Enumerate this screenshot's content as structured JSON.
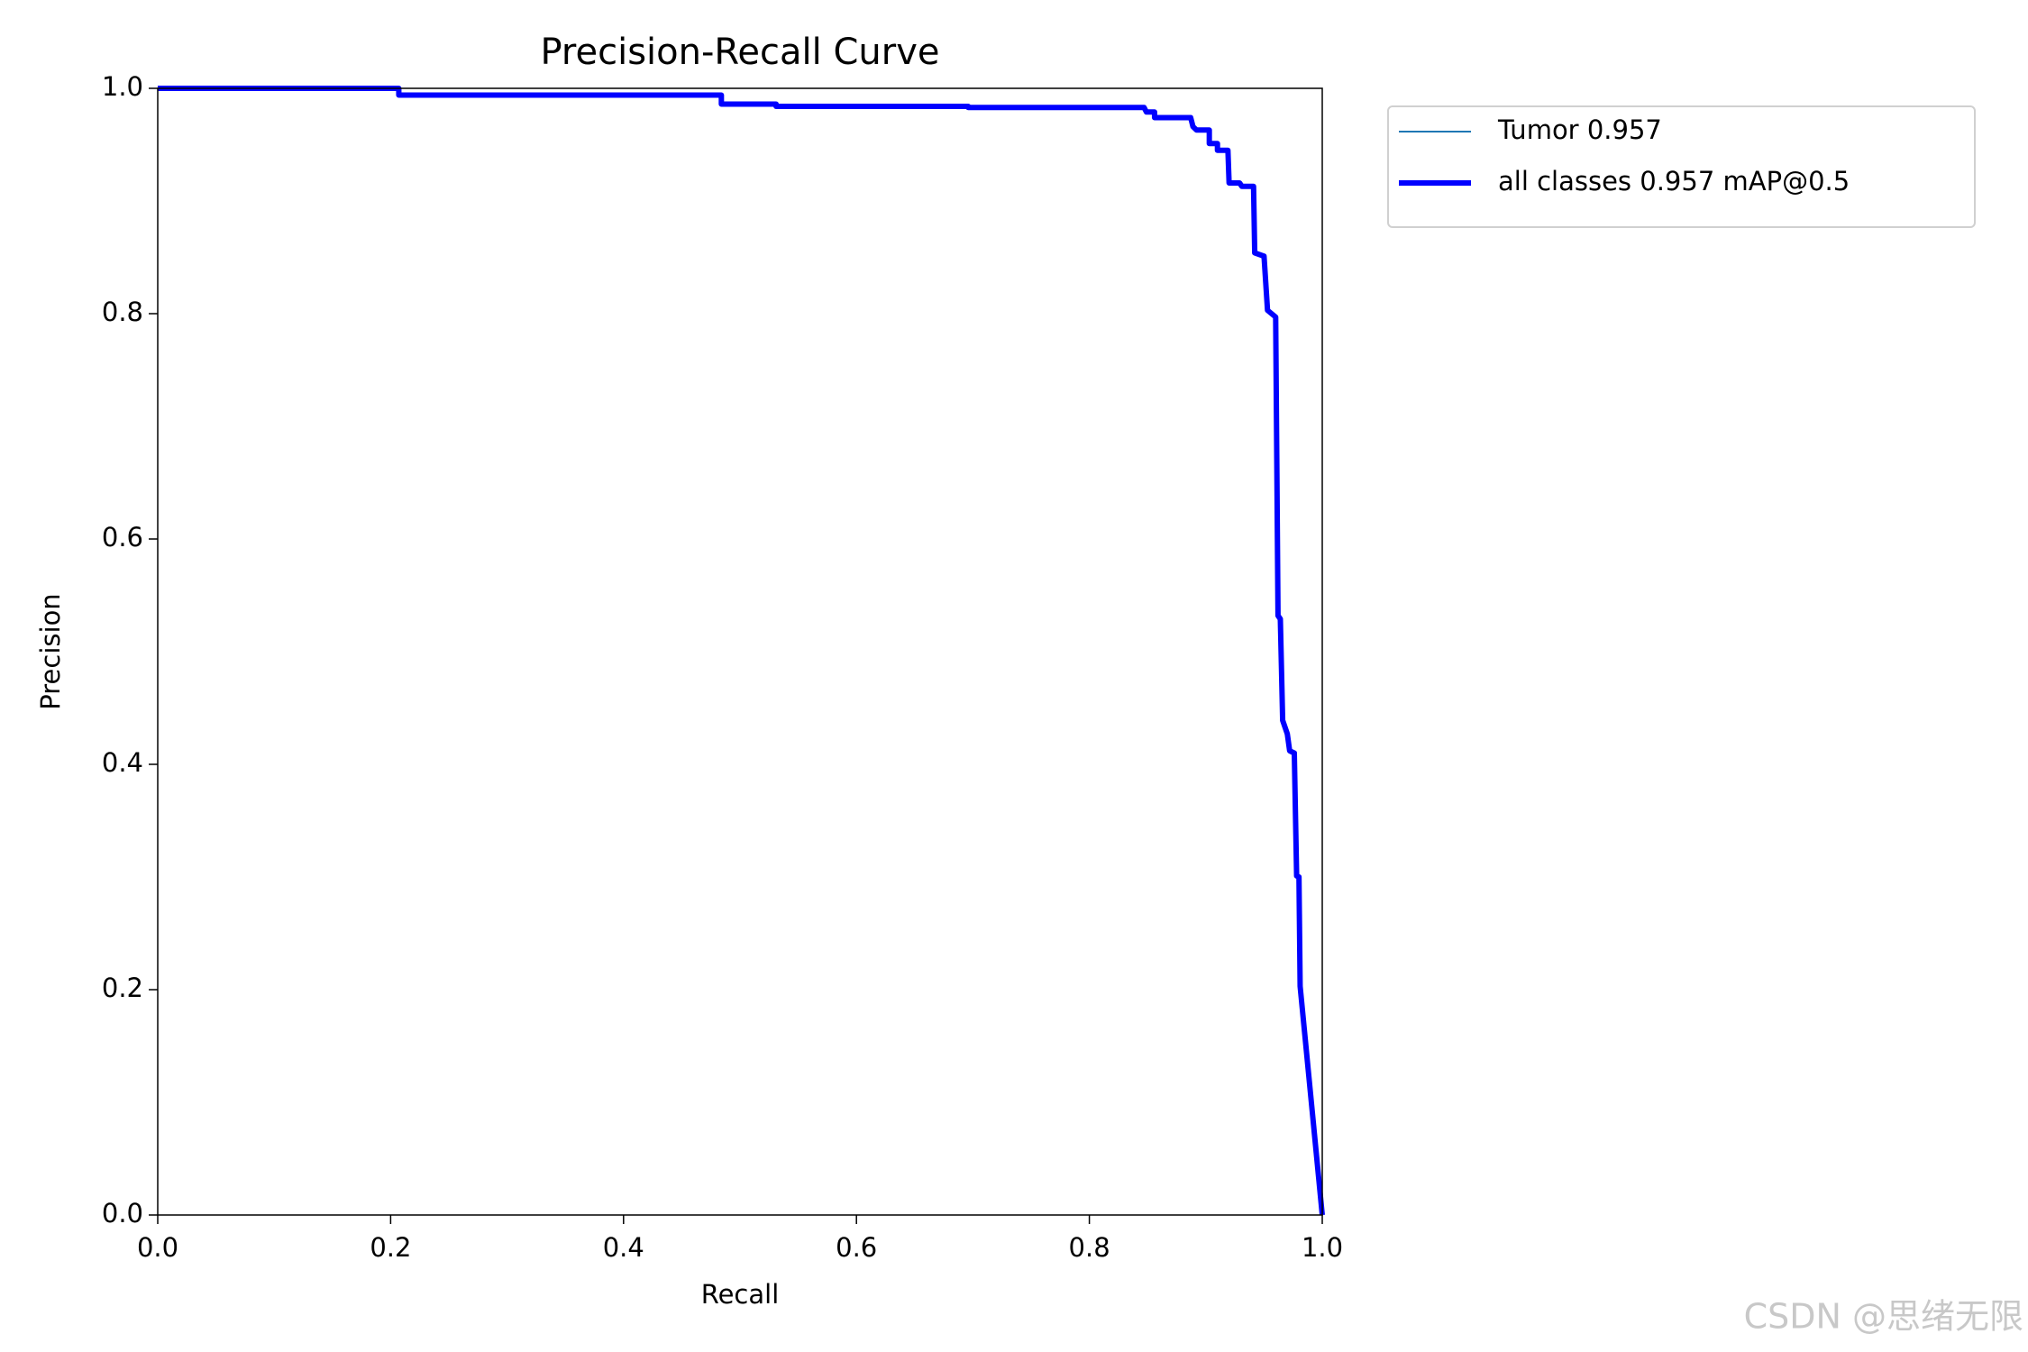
{
  "chart_data": {
    "type": "line",
    "title": "Precision-Recall Curve",
    "xlabel": "Recall",
    "ylabel": "Precision",
    "xlim": [
      0,
      1
    ],
    "ylim": [
      0,
      1
    ],
    "xticks": [
      {
        "value": 0,
        "label": "0.0"
      },
      {
        "value": 0.2,
        "label": "0.2"
      },
      {
        "value": 0.4,
        "label": "0.4"
      },
      {
        "value": 0.6,
        "label": "0.6"
      },
      {
        "value": 0.8,
        "label": "0.8"
      },
      {
        "value": 1,
        "label": "1.0"
      }
    ],
    "yticks": [
      {
        "value": 0,
        "label": "0.0"
      },
      {
        "value": 0.2,
        "label": "0.2"
      },
      {
        "value": 0.4,
        "label": "0.4"
      },
      {
        "value": 0.6,
        "label": "0.6"
      },
      {
        "value": 0.8,
        "label": "0.8"
      },
      {
        "value": 1,
        "label": "1.0"
      }
    ],
    "grid": false,
    "legend": "outside-right",
    "series": [
      {
        "name": "Tumor 0.957",
        "color": "#1f77b4",
        "width": 2,
        "x": [
          0,
          0.207,
          0.207,
          0.484,
          0.484,
          0.531,
          0.531,
          0.696,
          0.696,
          0.847,
          0.849,
          0.856,
          0.856,
          0.887,
          0.889,
          0.892,
          0.903,
          0.903,
          0.91,
          0.91,
          0.919,
          0.92,
          0.929,
          0.931,
          0.941,
          0.942,
          0.95,
          0.953,
          0.96,
          0.962,
          0.964,
          0.966,
          0.97,
          0.972,
          0.976,
          0.978,
          0.98,
          0.981,
          1
        ],
        "values": [
          1,
          1,
          0.994,
          0.994,
          0.986,
          0.986,
          0.984,
          0.984,
          0.983,
          0.983,
          0.979,
          0.979,
          0.974,
          0.974,
          0.966,
          0.963,
          0.963,
          0.951,
          0.951,
          0.945,
          0.945,
          0.916,
          0.916,
          0.913,
          0.913,
          0.854,
          0.851,
          0.803,
          0.797,
          0.532,
          0.529,
          0.439,
          0.427,
          0.412,
          0.41,
          0.301,
          0.3,
          0.203,
          0
        ]
      },
      {
        "name": "all classes 0.957 mAP@0.5",
        "color": "#0000ff",
        "width": 6,
        "x": [
          0,
          0.207,
          0.207,
          0.484,
          0.484,
          0.531,
          0.531,
          0.696,
          0.696,
          0.847,
          0.849,
          0.856,
          0.856,
          0.887,
          0.889,
          0.892,
          0.903,
          0.903,
          0.91,
          0.91,
          0.919,
          0.92,
          0.929,
          0.931,
          0.941,
          0.942,
          0.95,
          0.953,
          0.96,
          0.962,
          0.964,
          0.966,
          0.97,
          0.972,
          0.976,
          0.978,
          0.98,
          0.981,
          1
        ],
        "values": [
          1,
          1,
          0.994,
          0.994,
          0.986,
          0.986,
          0.984,
          0.984,
          0.983,
          0.983,
          0.979,
          0.979,
          0.974,
          0.974,
          0.966,
          0.963,
          0.963,
          0.951,
          0.951,
          0.945,
          0.945,
          0.916,
          0.916,
          0.913,
          0.913,
          0.854,
          0.851,
          0.803,
          0.797,
          0.532,
          0.529,
          0.439,
          0.427,
          0.412,
          0.41,
          0.301,
          0.3,
          0.203,
          0
        ]
      }
    ],
    "watermark": "CSDN @思绪无限"
  }
}
